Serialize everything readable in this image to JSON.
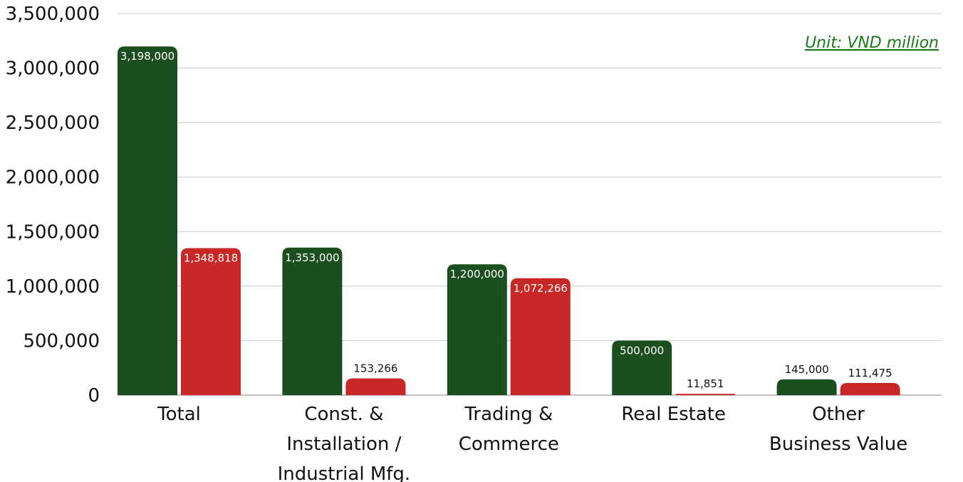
{
  "chart_data": {
    "type": "bar",
    "categories": [
      [
        "Total"
      ],
      [
        "Const. &",
        "Installation /",
        "Industrial Mfg."
      ],
      [
        "Trading &",
        "Commerce"
      ],
      [
        "Real Estate"
      ],
      [
        "Other",
        "Business Value"
      ]
    ],
    "series": [
      {
        "values": [
          3198000,
          1353000,
          1200000,
          500000,
          145000
        ],
        "color": "#1c4f1f"
      },
      {
        "values": [
          1348818,
          153266,
          1072266,
          11851,
          111475
        ],
        "color": "#c92626"
      }
    ],
    "data_labels": [
      [
        "3,198,000",
        "1,353,000",
        "1,200,000",
        "500,000",
        "145,000"
      ],
      [
        "1,348,818",
        "153,266",
        "1,072,266",
        "11,851",
        "111,475"
      ]
    ],
    "yticks": [
      "0",
      "500,000",
      "1,000,000",
      "1,500,000",
      "2,000,000",
      "2,500,000",
      "3,000,000",
      "3,500,000"
    ],
    "ylim": [
      0,
      3500000
    ],
    "title": "",
    "xlabel": "",
    "ylabel": "",
    "annotation": "Unit: VND million",
    "annotation_color": "#1a7a1a",
    "grid": true,
    "legend": "none"
  }
}
